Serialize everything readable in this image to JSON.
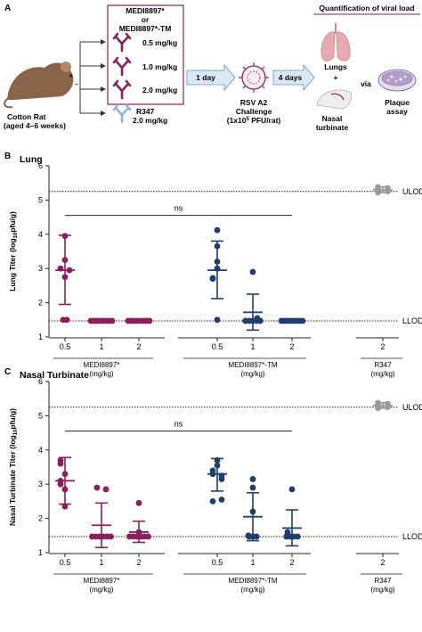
{
  "panel_a": {
    "letter": "A",
    "animal_label_1": "Cotton Rat",
    "animal_label_2": "(aged 4–6 weeks)",
    "box_title_1": "MEDI8897*",
    "box_title_2": "or",
    "box_title_3": "MEDI8897*-TM",
    "doses": [
      "0.5 mg/kg",
      "1.0 mg/kg",
      "2.0 mg/kg"
    ],
    "control_name": "R347",
    "control_dose": "2.0 mg/kg",
    "arrow_1": "1 day",
    "challenge_1": "RSV A2",
    "challenge_2": "Challenge",
    "challenge_3a": "(1x10",
    "challenge_3sup": "5",
    "challenge_3b": " PFU/rat)",
    "arrow_2": "4 days",
    "quant_title": "Quantification of viral load",
    "lungs": "Lungs",
    "plus": "+",
    "via": "via",
    "nasal_1": "Nasal",
    "nasal_2": "turbinate",
    "plaque_1": "Plaque",
    "plaque_2": "assay",
    "colors": {
      "burgundy": "#8c1e5c",
      "navy": "#1f3e6e",
      "lightblue": "#8fb4de",
      "arrowbox": "#dbe8f6",
      "lung_pink": "#e7a9b3"
    },
    "icons": [
      "rat-icon",
      "antibody-icon",
      "virus-icon",
      "lungs-icon",
      "nasal-icon",
      "petri-dish-icon"
    ]
  },
  "chart_data": [
    {
      "type": "scatter",
      "panel": "B",
      "title": "Lung",
      "ylabel_pre": "Lung Titer (log",
      "ylabel_sub": "10",
      "ylabel_post": "pfu/g)",
      "ylim": [
        1,
        6
      ],
      "yticks": [
        1,
        2,
        3,
        4,
        5,
        6
      ],
      "reference_lines": [
        {
          "y": 5.25,
          "label": "ULOD"
        },
        {
          "y": 1.47,
          "label": "LLOD"
        }
      ],
      "significance": {
        "label": "ns",
        "from_group": 0,
        "to_group": 5,
        "y": 4.55
      },
      "group_labels": [
        "MEDI8897*",
        "MEDI8897*-TM",
        "R347"
      ],
      "group_units": "(mg/kg)",
      "groups": [
        {
          "name": "MEDI8897*",
          "dose": "0.5",
          "color": "#8c1e5c",
          "marker": "circle",
          "mean": 2.95,
          "sd_low": 1.95,
          "sd_high": 3.97,
          "points": [
            3.95,
            3.25,
            3.0,
            2.95,
            2.75,
            1.5,
            1.5
          ]
        },
        {
          "name": "MEDI8897*",
          "dose": "1",
          "color": "#8c1e5c",
          "marker": "circle",
          "mean": 1.47,
          "sd_low": 1.47,
          "sd_high": 1.47,
          "points": [
            1.47,
            1.47,
            1.47,
            1.47,
            1.47,
            1.47,
            1.47,
            1.47
          ]
        },
        {
          "name": "MEDI8897*",
          "dose": "2",
          "color": "#8c1e5c",
          "marker": "circle",
          "mean": 1.47,
          "sd_low": 1.47,
          "sd_high": 1.47,
          "points": [
            1.47,
            1.47,
            1.47,
            1.47,
            1.47,
            1.47,
            1.47,
            1.47
          ]
        },
        {
          "name": "MEDI8897*-TM",
          "dose": "0.5",
          "color": "#1f3e6e",
          "marker": "circle",
          "mean": 2.95,
          "sd_low": 2.12,
          "sd_high": 3.8,
          "points": [
            4.12,
            3.65,
            3.2,
            3.0,
            2.72,
            2.7,
            1.5
          ]
        },
        {
          "name": "MEDI8897*-TM",
          "dose": "1",
          "color": "#1f3e6e",
          "marker": "circle",
          "mean": 1.72,
          "sd_low": 1.2,
          "sd_high": 2.25,
          "points": [
            2.9,
            1.55,
            1.47,
            1.47,
            1.47,
            1.47,
            1.47
          ]
        },
        {
          "name": "MEDI8897*-TM",
          "dose": "2",
          "color": "#1f3e6e",
          "marker": "circle",
          "mean": 1.47,
          "sd_low": 1.47,
          "sd_high": 1.47,
          "points": [
            1.47,
            1.47,
            1.47,
            1.47,
            1.47,
            1.47,
            1.47,
            1.47
          ]
        },
        {
          "name": "R347",
          "dose": "2",
          "color": "#9a9a9a",
          "marker": "hexagon",
          "mean": 5.3,
          "sd_low": 5.22,
          "sd_high": 5.38,
          "points": [
            5.38,
            5.35,
            5.32,
            5.3,
            5.28,
            5.25,
            5.22
          ]
        }
      ]
    },
    {
      "type": "scatter",
      "panel": "C",
      "title": "Nasal Turbinate",
      "ylabel_pre": "Nasal Turbinate Titer (log",
      "ylabel_sub": "10",
      "ylabel_post": "pfu/g)",
      "ylim": [
        1,
        6
      ],
      "yticks": [
        1,
        2,
        3,
        4,
        5,
        6
      ],
      "reference_lines": [
        {
          "y": 5.25,
          "label": "ULOD"
        },
        {
          "y": 1.47,
          "label": "LLOD"
        }
      ],
      "significance": {
        "label": "ns",
        "from_group": 0,
        "to_group": 5,
        "y": 4.55
      },
      "group_labels": [
        "MEDI8897*",
        "MEDI8897*-TM",
        "R347"
      ],
      "group_units": "(mg/kg)",
      "groups": [
        {
          "name": "MEDI8897*",
          "dose": "0.5",
          "color": "#8c1e5c",
          "marker": "circle",
          "mean": 3.1,
          "sd_low": 2.42,
          "sd_high": 3.78,
          "points": [
            3.7,
            3.6,
            3.3,
            3.1,
            3.0,
            2.85,
            2.35
          ]
        },
        {
          "name": "MEDI8897*",
          "dose": "1",
          "color": "#8c1e5c",
          "marker": "circle",
          "mean": 1.8,
          "sd_low": 1.15,
          "sd_high": 2.45,
          "points": [
            2.9,
            2.85,
            1.47,
            1.47,
            1.47,
            1.47,
            1.47,
            1.47
          ]
        },
        {
          "name": "MEDI8897*",
          "dose": "2",
          "color": "#8c1e5c",
          "marker": "circle",
          "mean": 1.6,
          "sd_low": 1.3,
          "sd_high": 1.92,
          "points": [
            2.45,
            1.6,
            1.47,
            1.47,
            1.47,
            1.47,
            1.47,
            1.47
          ]
        },
        {
          "name": "MEDI8897*-TM",
          "dose": "0.5",
          "color": "#1f3e6e",
          "marker": "circle",
          "mean": 3.3,
          "sd_low": 2.8,
          "sd_high": 3.75,
          "points": [
            3.7,
            3.55,
            3.4,
            3.3,
            3.25,
            3.15,
            2.55,
            2.5
          ]
        },
        {
          "name": "MEDI8897*-TM",
          "dose": "1",
          "color": "#1f3e6e",
          "marker": "circle",
          "mean": 2.05,
          "sd_low": 1.35,
          "sd_high": 2.75,
          "points": [
            3.15,
            2.9,
            2.2,
            1.5,
            1.47,
            1.47,
            1.47
          ]
        },
        {
          "name": "MEDI8897*-TM",
          "dose": "2",
          "color": "#1f3e6e",
          "marker": "circle",
          "mean": 1.72,
          "sd_low": 1.2,
          "sd_high": 2.25,
          "points": [
            2.85,
            1.6,
            1.5,
            1.47,
            1.47,
            1.47,
            1.47
          ]
        },
        {
          "name": "R347",
          "dose": "2",
          "color": "#9a9a9a",
          "marker": "hexagon",
          "mean": 5.3,
          "sd_low": 5.22,
          "sd_high": 5.38,
          "points": [
            5.38,
            5.35,
            5.32,
            5.3,
            5.28,
            5.25,
            5.22
          ]
        }
      ]
    }
  ]
}
